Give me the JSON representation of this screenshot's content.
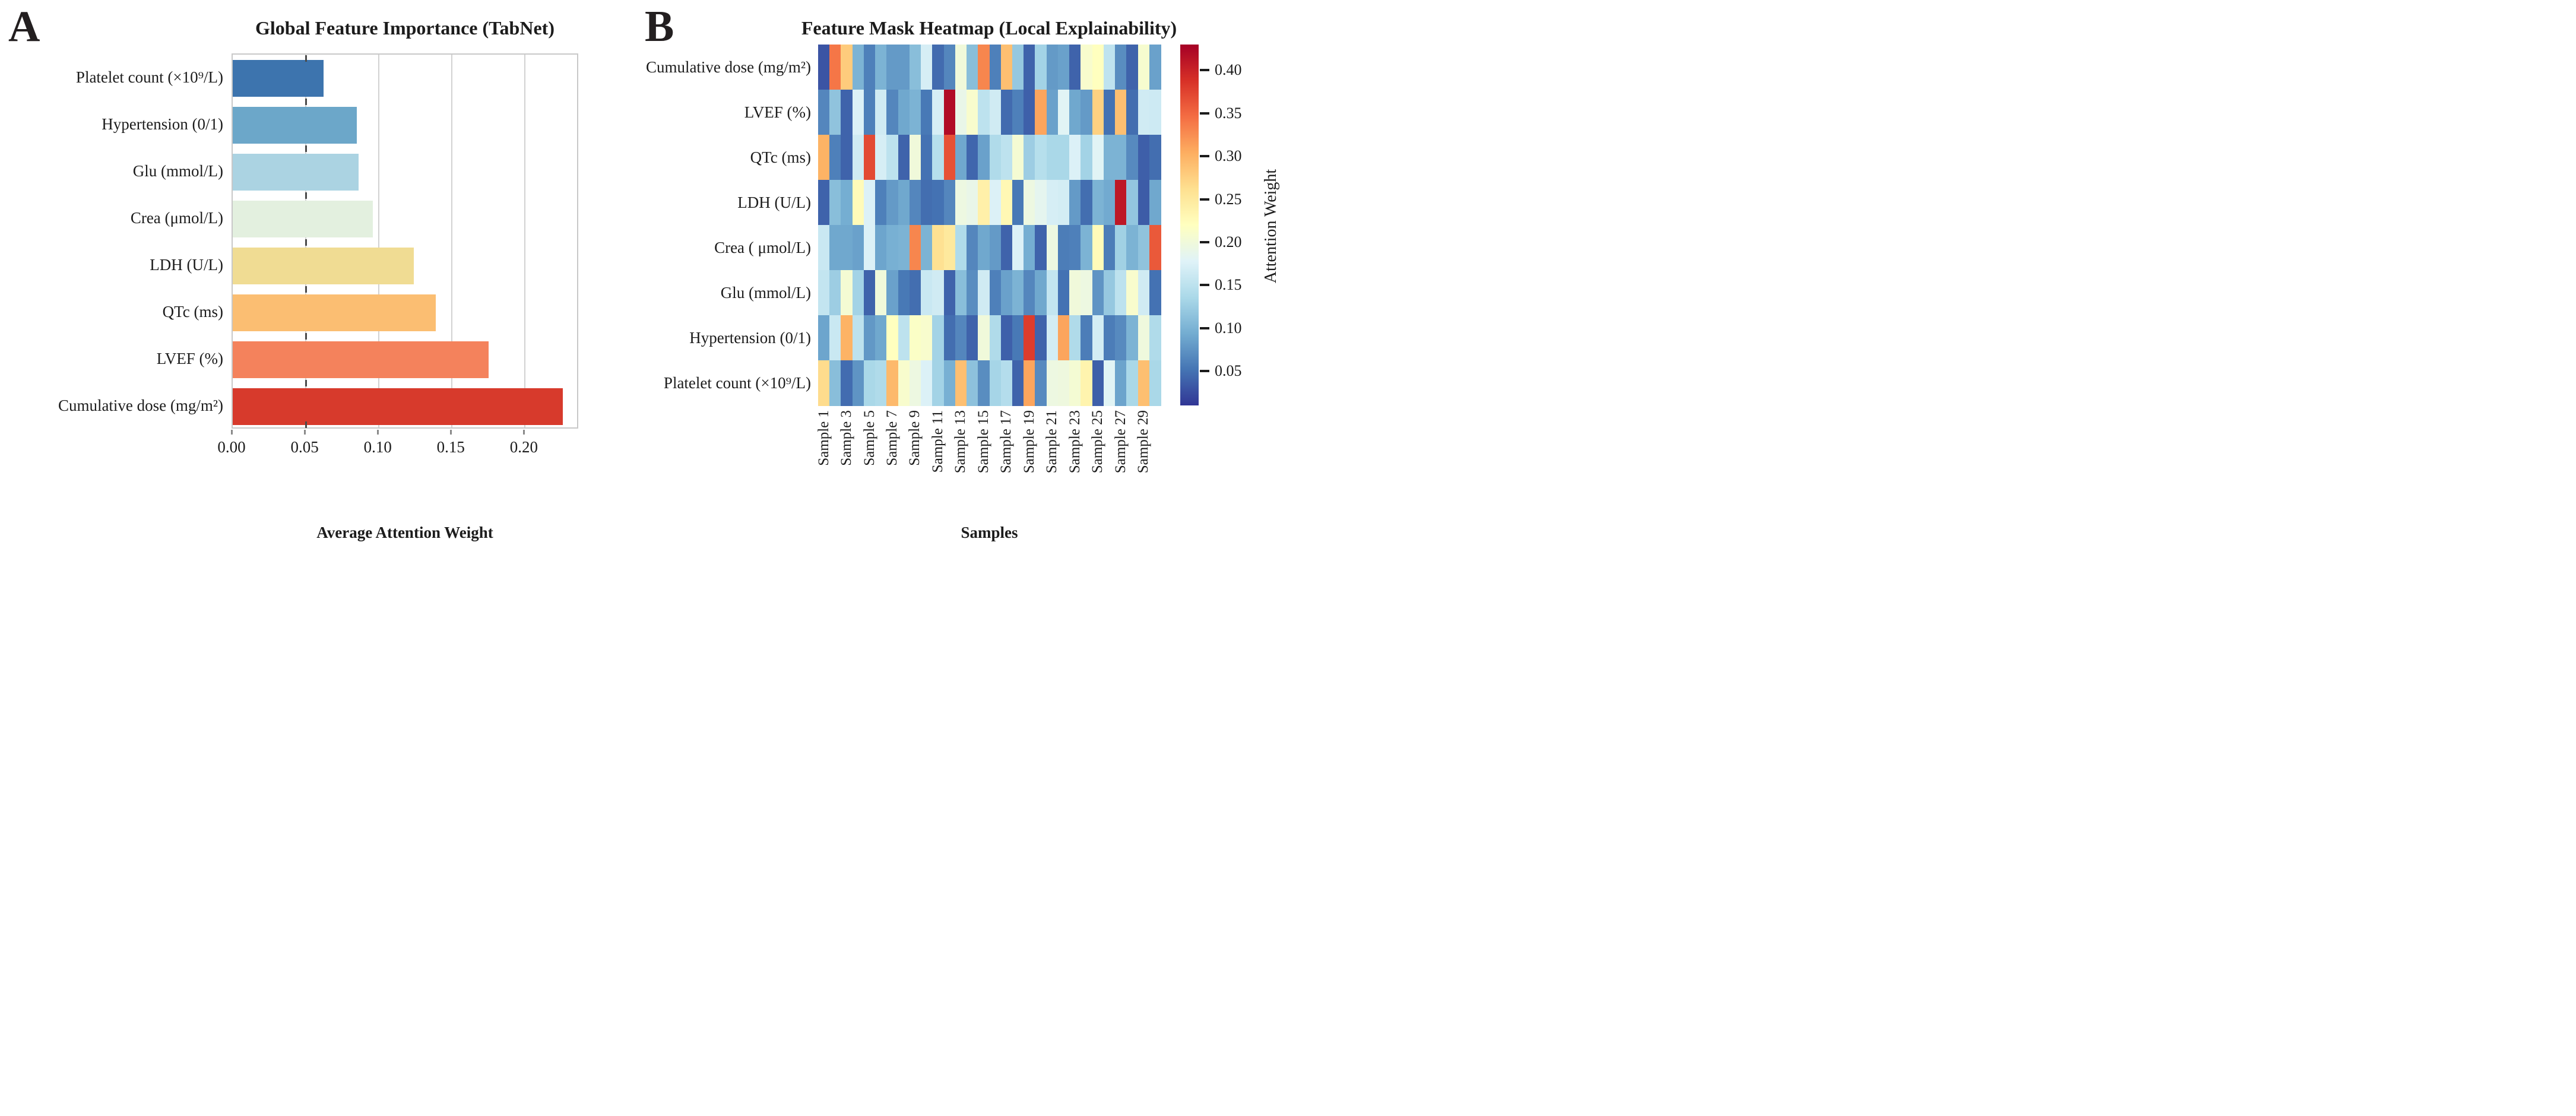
{
  "chart_data": [
    {
      "type": "bar",
      "panel_label": "A",
      "title": "Global Feature Importance (TabNet)",
      "xlabel": "Average Attention Weight",
      "orientation": "horizontal",
      "categories": [
        "Platelet count (×10⁹/L)",
        "Hypertension (0/1)",
        "Glu (mmol/L)",
        "Crea (μmol/L)",
        "LDH (U/L)",
        "QTc (ms)",
        "LVEF (%)",
        "Cumulative dose (mg/m²)"
      ],
      "values": [
        0.062,
        0.085,
        0.086,
        0.096,
        0.124,
        0.139,
        0.175,
        0.226
      ],
      "bar_colors": [
        "#3d74ae",
        "#6ca7c9",
        "#abd3e2",
        "#e3f0df",
        "#f0dc93",
        "#fbbe72",
        "#f4825c",
        "#d73a2c"
      ],
      "x_ticks": [
        0.0,
        0.05,
        0.1,
        0.15,
        0.2
      ],
      "x_tick_labels": [
        "0.00",
        "0.05",
        "0.10",
        "0.15",
        "0.20"
      ],
      "xlim": [
        0,
        0.2372
      ],
      "grid": true,
      "legend": null
    },
    {
      "type": "heatmap",
      "panel_label": "B",
      "title": "Feature Mask Heatmap (Local Explainability)",
      "xlabel": "Samples",
      "rows": [
        "Cumulative dose (mg/m²)",
        "LVEF (%)",
        "QTc (ms)",
        "LDH (U/L)",
        "Crea ( μmol/L)",
        "Glu (mmol/L)",
        "Hypertension (0/1)",
        "Platelet count (×10⁹/L)"
      ],
      "n_cols": 30,
      "col_labels": [
        "Sample 1",
        "Sample 3",
        "Sample 5",
        "Sample 7",
        "Sample 9",
        "Sample 11",
        "Sample 13",
        "Sample 15",
        "Sample 17",
        "Sample 19",
        "Sample 21",
        "Sample 23",
        "Sample 25",
        "Sample 27",
        "Sample 29"
      ],
      "values": [
        [
          0.03,
          0.34,
          0.28,
          0.1,
          0.06,
          0.1,
          0.08,
          0.08,
          0.11,
          0.17,
          0.045,
          0.065,
          0.2,
          0.11,
          0.33,
          0.06,
          0.29,
          0.12,
          0.04,
          0.13,
          0.08,
          0.085,
          0.04,
          0.21,
          0.22,
          0.152,
          0.07,
          0.04,
          0.208,
          0.085
        ],
        [
          0.065,
          0.115,
          0.04,
          0.175,
          0.06,
          0.165,
          0.065,
          0.09,
          0.1,
          0.055,
          0.17,
          0.42,
          0.19,
          0.21,
          0.15,
          0.165,
          0.045,
          0.06,
          0.038,
          0.31,
          0.085,
          0.18,
          0.09,
          0.08,
          0.275,
          0.05,
          0.29,
          0.047,
          0.165,
          0.163
        ],
        [
          0.3,
          0.06,
          0.04,
          0.165,
          0.37,
          0.17,
          0.15,
          0.04,
          0.2,
          0.05,
          0.145,
          0.365,
          0.09,
          0.042,
          0.085,
          0.14,
          0.15,
          0.205,
          0.125,
          0.145,
          0.135,
          0.135,
          0.175,
          0.13,
          0.18,
          0.1,
          0.1,
          0.068,
          0.037,
          0.047
        ],
        [
          0.04,
          0.11,
          0.095,
          0.225,
          0.175,
          0.06,
          0.08,
          0.09,
          0.065,
          0.047,
          0.05,
          0.065,
          0.195,
          0.19,
          0.24,
          0.175,
          0.23,
          0.055,
          0.195,
          0.185,
          0.17,
          0.168,
          0.08,
          0.047,
          0.1,
          0.092,
          0.41,
          0.118,
          0.035,
          0.09
        ],
        [
          0.16,
          0.09,
          0.09,
          0.085,
          0.175,
          0.088,
          0.097,
          0.1,
          0.33,
          0.1,
          0.26,
          0.25,
          0.14,
          0.065,
          0.09,
          0.08,
          0.04,
          0.175,
          0.095,
          0.04,
          0.195,
          0.058,
          0.06,
          0.1,
          0.225,
          0.058,
          0.128,
          0.1,
          0.115,
          0.36
        ],
        [
          0.155,
          0.125,
          0.205,
          0.13,
          0.04,
          0.2,
          0.085,
          0.055,
          0.047,
          0.16,
          0.165,
          0.04,
          0.11,
          0.07,
          0.165,
          0.06,
          0.085,
          0.1,
          0.065,
          0.09,
          0.155,
          0.05,
          0.2,
          0.195,
          0.075,
          0.12,
          0.15,
          0.21,
          0.165,
          0.05
        ],
        [
          0.088,
          0.16,
          0.3,
          0.15,
          0.078,
          0.09,
          0.22,
          0.15,
          0.215,
          0.21,
          0.13,
          0.047,
          0.065,
          0.04,
          0.2,
          0.14,
          0.038,
          0.055,
          0.38,
          0.04,
          0.168,
          0.31,
          0.14,
          0.058,
          0.168,
          0.058,
          0.068,
          0.1,
          0.198,
          0.14
        ],
        [
          0.265,
          0.11,
          0.046,
          0.075,
          0.135,
          0.14,
          0.295,
          0.21,
          0.195,
          0.175,
          0.13,
          0.097,
          0.29,
          0.113,
          0.07,
          0.132,
          0.143,
          0.04,
          0.31,
          0.068,
          0.195,
          0.197,
          0.205,
          0.235,
          0.037,
          0.18,
          0.087,
          0.135,
          0.29,
          0.135
        ]
      ],
      "colormap": "RdYlBu_r",
      "vmin": 0.01,
      "vmax": 0.43,
      "colorbar": {
        "label": "Attention Weight",
        "tick_values": [
          0.4,
          0.35,
          0.3,
          0.25,
          0.2,
          0.15,
          0.1,
          0.05
        ],
        "tick_labels": [
          "0.40",
          "0.35",
          "0.30",
          "0.25",
          "0.20",
          "0.15",
          "0.10",
          "0.05"
        ]
      }
    }
  ]
}
